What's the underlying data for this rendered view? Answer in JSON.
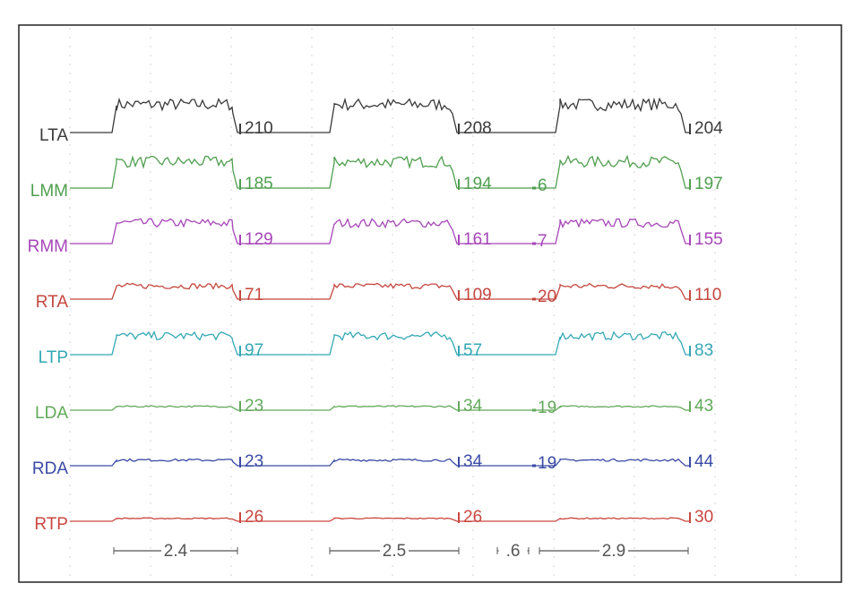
{
  "channels": [
    {
      "name": "LTA",
      "color": "#3a3a3a",
      "amplitudes": [
        210,
        208,
        204
      ]
    },
    {
      "name": "LMM",
      "color": "#4f9e4f",
      "amplitudes": [
        185,
        194,
        197
      ],
      "gap_amplitude": 6
    },
    {
      "name": "RMM",
      "color": "#a646b8",
      "amplitudes": [
        129,
        161,
        155
      ],
      "gap_amplitude": 7
    },
    {
      "name": "RTA",
      "color": "#c4473f",
      "amplitudes": [
        71,
        109,
        110
      ],
      "gap_amplitude": 20
    },
    {
      "name": "LTP",
      "color": "#34a8b4",
      "amplitudes": [
        97,
        57,
        83
      ]
    },
    {
      "name": "LDA",
      "color": "#62a85a",
      "amplitudes": [
        23,
        34,
        43
      ],
      "gap_amplitude": 19
    },
    {
      "name": "RDA",
      "color": "#3a4aa4",
      "amplitudes": [
        23,
        34,
        44
      ],
      "gap_amplitude": 19
    },
    {
      "name": "RTP",
      "color": "#c9473f",
      "amplitudes": [
        26,
        26,
        30
      ]
    }
  ],
  "durations": [
    "2.4",
    "2.5",
    ".6",
    "2.9"
  ]
}
